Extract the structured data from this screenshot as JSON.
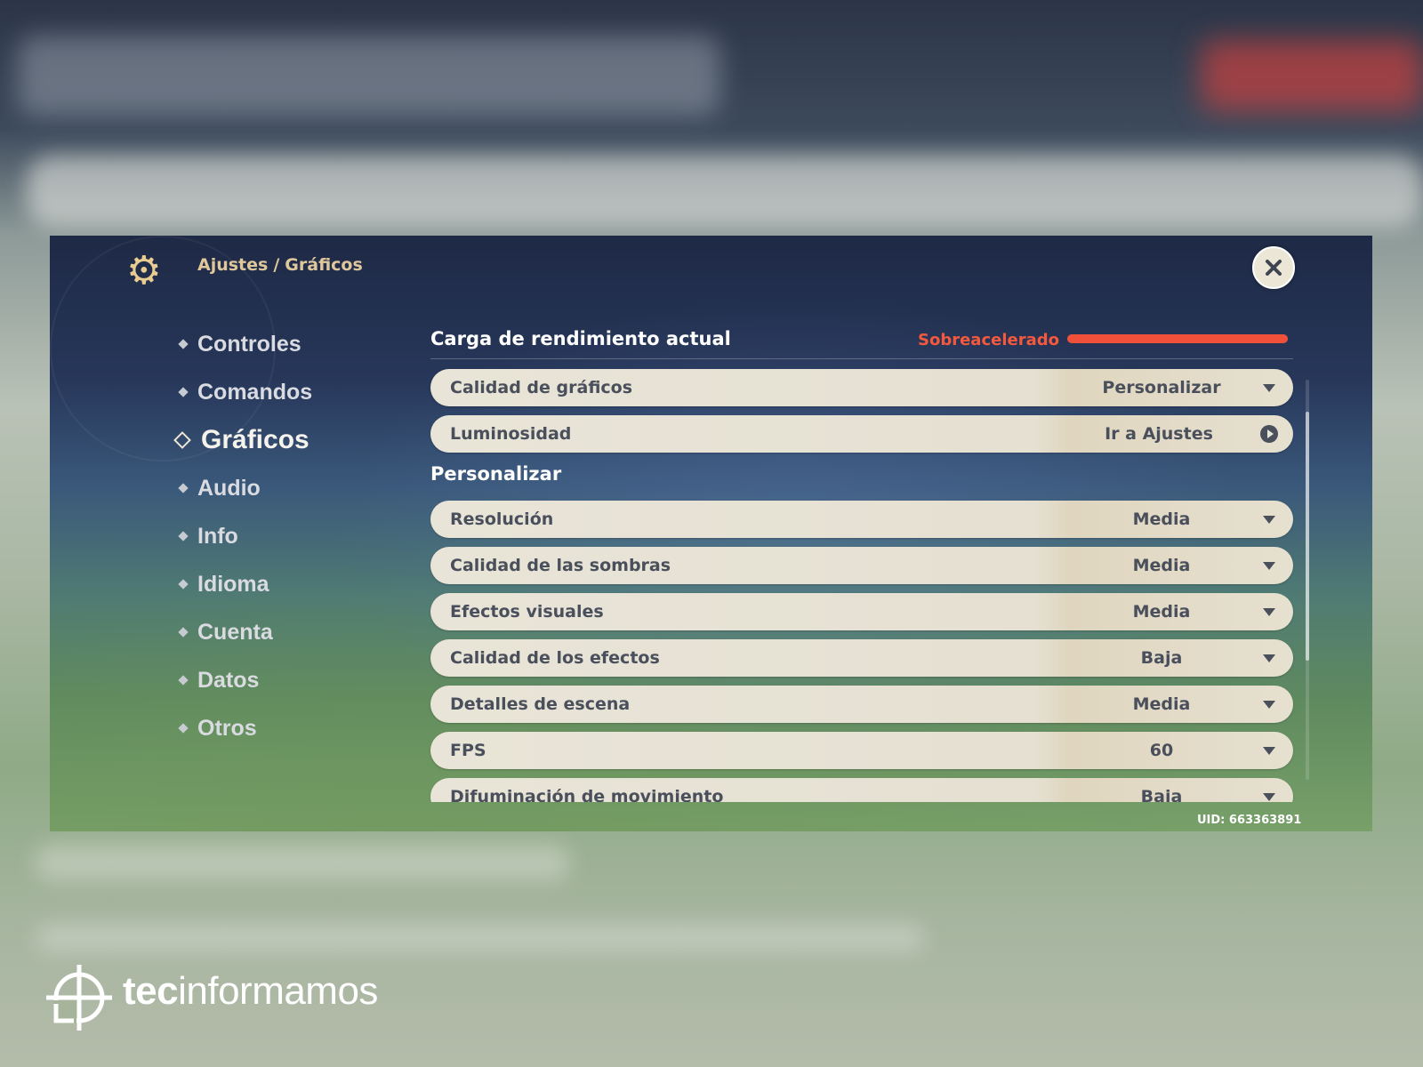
{
  "header": {
    "breadcrumb_root": "Ajustes",
    "breadcrumb_separator": "/",
    "breadcrumb_current": "Gráficos"
  },
  "sidebar": {
    "items": [
      {
        "label": "Controles"
      },
      {
        "label": "Comandos"
      },
      {
        "label": "Gráficos",
        "active": true
      },
      {
        "label": "Audio"
      },
      {
        "label": "Info"
      },
      {
        "label": "Idioma"
      },
      {
        "label": "Cuenta"
      },
      {
        "label": "Datos"
      },
      {
        "label": "Otros"
      }
    ]
  },
  "performance": {
    "title": "Carga de rendimiento actual",
    "status": "Sobreacelerado",
    "level_percent": 100,
    "color": "#f0503a"
  },
  "general_settings": [
    {
      "label": "Calidad de gráficos",
      "value": "Personalizar",
      "control": "dropdown"
    },
    {
      "label": "Luminosidad",
      "value": "Ir a Ajustes",
      "control": "link"
    }
  ],
  "custom_section": {
    "title": "Personalizar",
    "settings": [
      {
        "label": "Resolución",
        "value": "Media"
      },
      {
        "label": "Calidad de las sombras",
        "value": "Media"
      },
      {
        "label": "Efectos visuales",
        "value": "Media"
      },
      {
        "label": "Calidad de los efectos",
        "value": "Baja"
      },
      {
        "label": "Detalles de escena",
        "value": "Media"
      },
      {
        "label": "FPS",
        "value": "60"
      },
      {
        "label": "Difuminación de movimiento",
        "value": "Baja"
      }
    ]
  },
  "footer": {
    "uid": "UID: 663363891"
  },
  "brand": {
    "part1": "tec",
    "part2": "informamos"
  },
  "icons": {
    "settings": "gear-icon",
    "close": "close-icon",
    "dropdown": "chevron-down-icon",
    "go": "arrow-right-circle-icon",
    "logo": "crosshair-logo-icon"
  }
}
